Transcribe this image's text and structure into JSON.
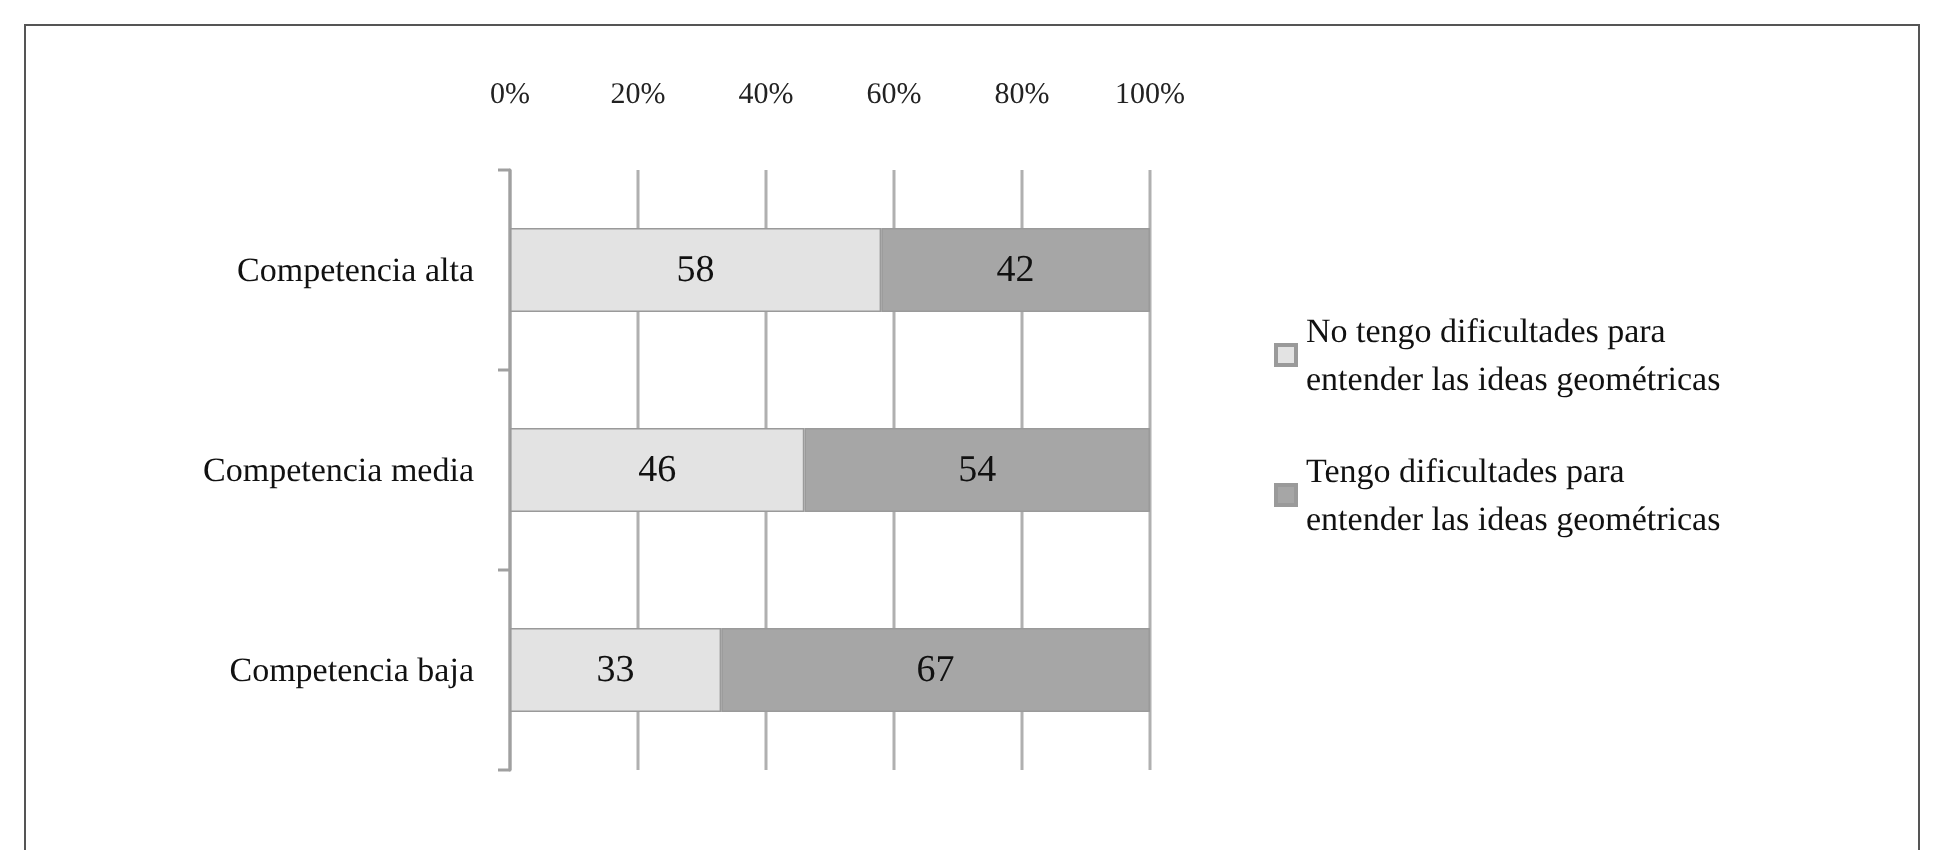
{
  "chart_data": {
    "type": "bar",
    "orientation": "horizontal",
    "stacked": true,
    "categories": [
      "Competencia alta",
      "Competencia media",
      "Competencia baja"
    ],
    "series": [
      {
        "name": "No tengo dificultades para entender las ideas geométricas",
        "color": "#e3e3e3",
        "values": [
          58,
          46,
          33
        ]
      },
      {
        "name": "Tengo dificultades para entender las ideas geométricas",
        "color": "#a6a6a6",
        "values": [
          42,
          54,
          67
        ]
      }
    ],
    "xlim": [
      0,
      100
    ],
    "xticks": [
      {
        "value": 0,
        "label": "0%"
      },
      {
        "value": 20,
        "label": "20%"
      },
      {
        "value": 40,
        "label": "40%"
      },
      {
        "value": 60,
        "label": "60%"
      },
      {
        "value": 80,
        "label": "80%"
      },
      {
        "value": 100,
        "label": "100%"
      }
    ],
    "grid": "x",
    "legend": "right",
    "data_labels": true
  }
}
